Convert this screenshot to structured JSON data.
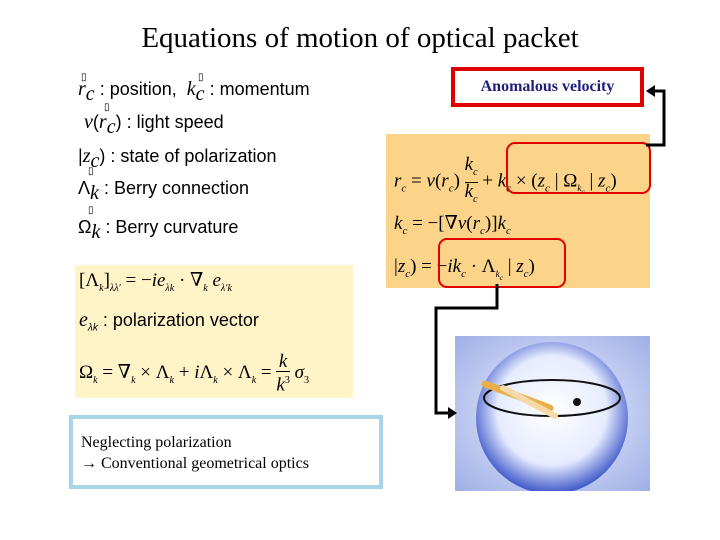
{
  "title": "Equations of motion of optical packet",
  "definitions": {
    "position": ": position,",
    "momentum": ": momentum",
    "light_speed": ": light speed",
    "polarization_state": ": state of polarization",
    "berry_connection": ": Berry connection",
    "berry_curvature": ": Berry curvature"
  },
  "anomalous_label": "Anomalous velocity",
  "polarization_vector_label": ": polarization vector",
  "neglect_note": {
    "line1": "Neglecting  polarization",
    "line2": "→ Conventional geometrical optics"
  },
  "colors": {
    "title_text": "#000000",
    "anomalous_border": "#e00000",
    "anomalous_text": "#1f1f7a",
    "equation_panel": "#fbd389",
    "definition_panel": "#fff3c8",
    "note_border": "#a9d3e6",
    "highlight": "#e00000"
  },
  "icons": [
    "arrow-connector",
    "poincare-sphere-image"
  ]
}
